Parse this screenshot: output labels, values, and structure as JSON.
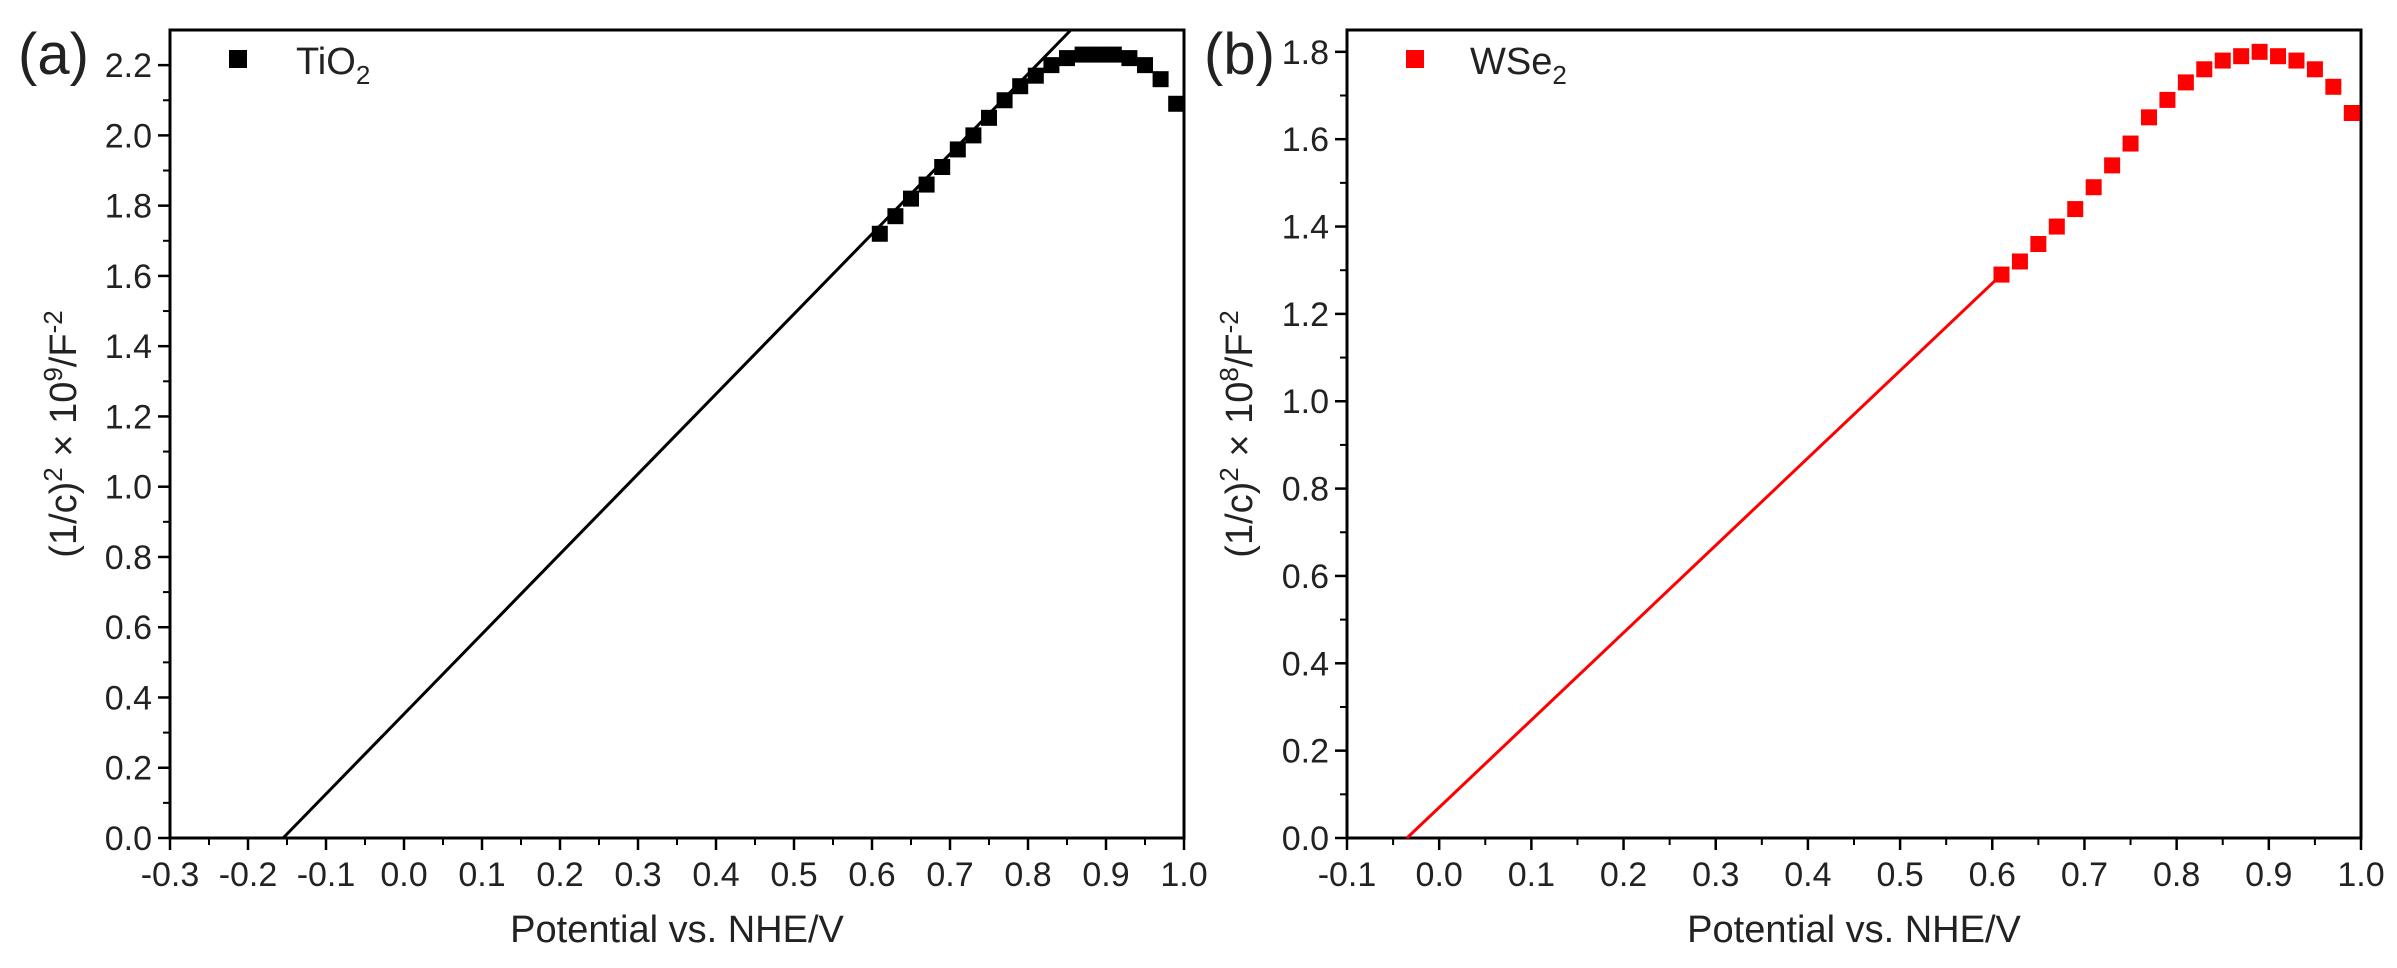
{
  "figure": {
    "panels": [
      {
        "label": "(a)",
        "legend_main": "TiO",
        "legend_sub": "2",
        "ylabel_prefix": "(1/c)",
        "ylabel_sup1": "2",
        "ylabel_mid": " × 10",
        "ylabel_sup2": "9",
        "ylabel_tail": "/F",
        "ylabel_sup3": "-2",
        "xlabel": "Potential vs. NHE/V"
      },
      {
        "label": "(b)",
        "legend_main": "WSe",
        "legend_sub": "2",
        "ylabel_prefix": "(1/c)",
        "ylabel_sup1": "2",
        "ylabel_mid": " × 10",
        "ylabel_sup2": "8",
        "ylabel_tail": "/F",
        "ylabel_sup3": "-2",
        "xlabel": "Potential vs. NHE/V"
      }
    ]
  },
  "chart_data": [
    {
      "type": "scatter",
      "panel": "(a)",
      "title": "",
      "xlabel": "Potential vs. NHE/V",
      "ylabel": "(1/c)^2 × 10^9/F^-2",
      "xlim": [
        -0.3,
        1.0
      ],
      "ylim": [
        0.0,
        2.3
      ],
      "xticks": [
        "-0.3",
        "-0.2",
        "-0.1",
        "0.0",
        "0.1",
        "0.2",
        "0.3",
        "0.4",
        "0.5",
        "0.6",
        "0.7",
        "0.8",
        "0.9",
        "1.0"
      ],
      "yticks": [
        "0.0",
        "0.2",
        "0.4",
        "0.6",
        "0.8",
        "1.0",
        "1.2",
        "1.4",
        "1.6",
        "1.8",
        "2.0",
        "2.2"
      ],
      "color": "#000000",
      "series": [
        {
          "name": "TiO2",
          "x": [
            0.61,
            0.63,
            0.65,
            0.67,
            0.69,
            0.71,
            0.73,
            0.75,
            0.77,
            0.79,
            0.81,
            0.83,
            0.85,
            0.87,
            0.89,
            0.91,
            0.93,
            0.95,
            0.97,
            0.99
          ],
          "y": [
            1.72,
            1.77,
            1.82,
            1.86,
            1.91,
            1.96,
            2.0,
            2.05,
            2.1,
            2.14,
            2.17,
            2.2,
            2.22,
            2.23,
            2.23,
            2.23,
            2.22,
            2.2,
            2.16,
            2.09
          ]
        }
      ],
      "fit_line": {
        "x": [
          -0.155,
          0.855
        ],
        "y": [
          0.0,
          2.3
        ]
      }
    },
    {
      "type": "scatter",
      "panel": "(b)",
      "title": "",
      "xlabel": "Potential vs. NHE/V",
      "ylabel": "(1/c)^2 × 10^8/F^-2",
      "xlim": [
        -0.1,
        1.0
      ],
      "ylim": [
        0.0,
        1.85
      ],
      "xticks": [
        "-0.1",
        "0.0",
        "0.1",
        "0.2",
        "0.3",
        "0.4",
        "0.5",
        "0.6",
        "0.7",
        "0.8",
        "0.9",
        "1.0"
      ],
      "yticks": [
        "0.0",
        "0.2",
        "0.4",
        "0.6",
        "0.8",
        "1.0",
        "1.2",
        "1.4",
        "1.6",
        "1.8"
      ],
      "color": "#ff0000",
      "series": [
        {
          "name": "WSe2",
          "x": [
            0.61,
            0.63,
            0.65,
            0.67,
            0.69,
            0.71,
            0.73,
            0.75,
            0.77,
            0.79,
            0.81,
            0.83,
            0.85,
            0.87,
            0.89,
            0.91,
            0.93,
            0.95,
            0.97,
            0.99
          ],
          "y": [
            1.29,
            1.32,
            1.36,
            1.4,
            1.44,
            1.49,
            1.54,
            1.59,
            1.65,
            1.69,
            1.73,
            1.76,
            1.78,
            1.79,
            1.8,
            1.79,
            1.78,
            1.76,
            1.72,
            1.66
          ]
        }
      ],
      "fit_line": {
        "x": [
          -0.035,
          0.61
        ],
        "y": [
          0.0,
          1.29
        ]
      }
    }
  ]
}
